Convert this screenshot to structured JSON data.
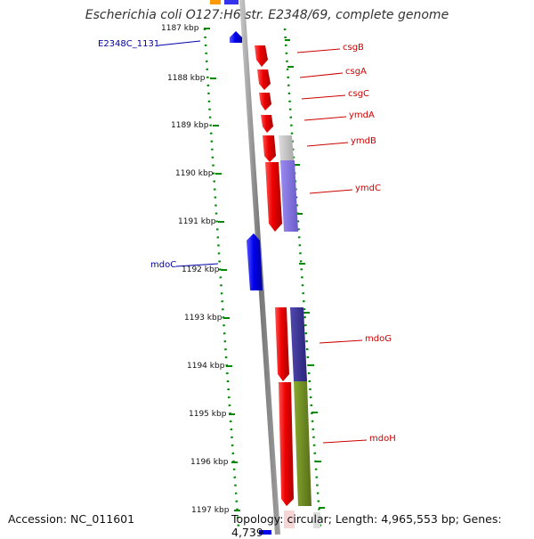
{
  "title": "Escherichia coli O127:H6 str. E2348/69, complete genome",
  "footer": {
    "accession": "Accession: NC_011601",
    "topology": "Topology: circular; Length: 4,965,553 bp; Genes: 4,739"
  },
  "kbp_labels": [
    "1187 kbp",
    "1188 kbp",
    "1189 kbp",
    "1190 kbp",
    "1191 kbp",
    "1192 kbp",
    "1193 kbp",
    "1194 kbp",
    "1195 kbp",
    "1196 kbp",
    "1197 kbp"
  ],
  "gene_labels": {
    "csgB": "csgB",
    "csgA": "csgA",
    "csgC": "csgC",
    "ymdA": "ymdA",
    "ymdB": "ymdB",
    "ymdC": "ymdC",
    "mdoG": "mdoG",
    "mdoH": "mdoH",
    "E2348C_1131": "E2348C_1131",
    "mdoC": "mdoC"
  },
  "colors": {
    "forward_gene": "#ee0000",
    "reverse_gene": "#0000ee",
    "forward_label": "#cc0000",
    "reverse_label": "#0000aa",
    "backbone": "#7a7a7a",
    "tick": "#008800",
    "cog_gray": "#bbbbbb",
    "cog_purple": "#8070d8",
    "cog_navy": "#3a3090",
    "cog_olive": "#6a8a20",
    "cog_orange": "#ff9900"
  }
}
